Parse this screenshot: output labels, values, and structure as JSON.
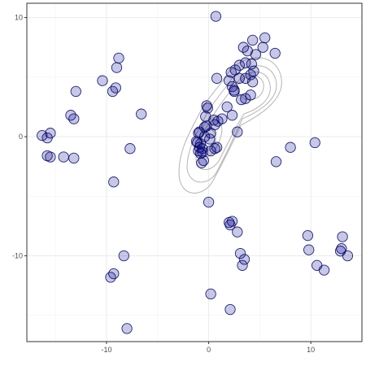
{
  "chart_data": {
    "type": "scatter",
    "title": "",
    "xlabel": "",
    "ylabel": "",
    "xlim": [
      -17.8,
      15
    ],
    "ylim": [
      -17.2,
      11.2
    ],
    "x_ticks": [
      -10,
      0,
      10
    ],
    "y_ticks": [
      -10,
      0,
      10
    ],
    "x_tick_labels": [
      "-10",
      "0",
      "10"
    ],
    "y_tick_labels": [
      "-10",
      "0",
      "10"
    ],
    "grid": true,
    "legend": "none",
    "point_fill": "#00008b",
    "point_fill_opacity": 0.22,
    "point_stroke": "#00005a",
    "contour_color": "#b5b5b5",
    "points": [
      [
        -16.3,
        0.1
      ],
      [
        -15.8,
        -0.1
      ],
      [
        -15.5,
        0.3
      ],
      [
        -15.8,
        -1.6
      ],
      [
        -15.5,
        -1.7
      ],
      [
        -14.2,
        -1.7
      ],
      [
        -13.5,
        1.8
      ],
      [
        -13.2,
        1.5
      ],
      [
        -13.0,
        3.8
      ],
      [
        -13.2,
        -1.8
      ],
      [
        -10.4,
        4.7
      ],
      [
        -9.4,
        3.8
      ],
      [
        -9.1,
        4.1
      ],
      [
        -9.0,
        5.8
      ],
      [
        -8.8,
        6.6
      ],
      [
        -6.6,
        1.9
      ],
      [
        -7.7,
        -1.0
      ],
      [
        -9.3,
        -3.8
      ],
      [
        -8.3,
        -10.0
      ],
      [
        -9.6,
        -11.8
      ],
      [
        -9.3,
        -11.5
      ],
      [
        -8.0,
        -16.1
      ],
      [
        0.7,
        10.1
      ],
      [
        0.8,
        4.9
      ],
      [
        1.8,
        2.5
      ],
      [
        2.3,
        1.8
      ],
      [
        2.8,
        0.4
      ],
      [
        2.0,
        -7.2
      ],
      [
        2.3,
        -7.1
      ],
      [
        2.1,
        -7.4
      ],
      [
        2.8,
        -8.0
      ],
      [
        3.1,
        -9.8
      ],
      [
        3.5,
        -10.3
      ],
      [
        3.3,
        -10.8
      ],
      [
        0.2,
        -13.2
      ],
      [
        2.1,
        -14.5
      ],
      [
        0.0,
        -5.5
      ],
      [
        3.4,
        7.5
      ],
      [
        3.8,
        7.2
      ],
      [
        4.3,
        8.1
      ],
      [
        5.3,
        7.5
      ],
      [
        5.5,
        8.3
      ],
      [
        6.5,
        7.0
      ],
      [
        4.6,
        6.9
      ],
      [
        4.2,
        6.1
      ],
      [
        3.0,
        6.0
      ],
      [
        3.6,
        6.2
      ],
      [
        2.6,
        5.6
      ],
      [
        2.2,
        5.4
      ],
      [
        2.0,
        4.7
      ],
      [
        2.3,
        4.2
      ],
      [
        2.5,
        3.9
      ],
      [
        3.0,
        4.9
      ],
      [
        3.6,
        4.9
      ],
      [
        4.3,
        4.6
      ],
      [
        4.1,
        3.5
      ],
      [
        3.6,
        3.2
      ],
      [
        3.2,
        3.1
      ],
      [
        4.1,
        5.2
      ],
      [
        4.4,
        5.5
      ],
      [
        2.5,
        3.8
      ],
      [
        -0.2,
        2.6
      ],
      [
        -0.1,
        2.4
      ],
      [
        -0.3,
        1.7
      ],
      [
        0.5,
        1.4
      ],
      [
        0.9,
        1.3
      ],
      [
        1.3,
        1.5
      ],
      [
        0.6,
        1.0
      ],
      [
        -0.2,
        0.9
      ],
      [
        -0.4,
        0.8
      ],
      [
        0.2,
        0.3
      ],
      [
        -1.0,
        0.3
      ],
      [
        -0.9,
        0.4
      ],
      [
        -0.4,
        0.0
      ],
      [
        0.1,
        -0.2
      ],
      [
        -1.1,
        -0.5
      ],
      [
        -1.2,
        -0.4
      ],
      [
        -0.8,
        -0.6
      ],
      [
        -0.9,
        -0.9
      ],
      [
        -0.6,
        -1.0
      ],
      [
        -1.0,
        -1.2
      ],
      [
        -0.8,
        -1.4
      ],
      [
        -0.6,
        -1.3
      ],
      [
        0.6,
        -1.0
      ],
      [
        0.8,
        -0.9
      ],
      [
        0.2,
        -1.2
      ],
      [
        -0.7,
        -2.2
      ],
      [
        -0.5,
        -2.0
      ],
      [
        6.6,
        -2.1
      ],
      [
        8.0,
        -0.9
      ],
      [
        10.4,
        -0.5
      ],
      [
        9.7,
        -8.3
      ],
      [
        9.8,
        -9.5
      ],
      [
        10.6,
        -10.8
      ],
      [
        11.3,
        -11.2
      ],
      [
        12.9,
        -9.6
      ],
      [
        13.0,
        -9.4
      ],
      [
        13.1,
        -8.4
      ],
      [
        13.6,
        -10.0
      ]
    ]
  }
}
